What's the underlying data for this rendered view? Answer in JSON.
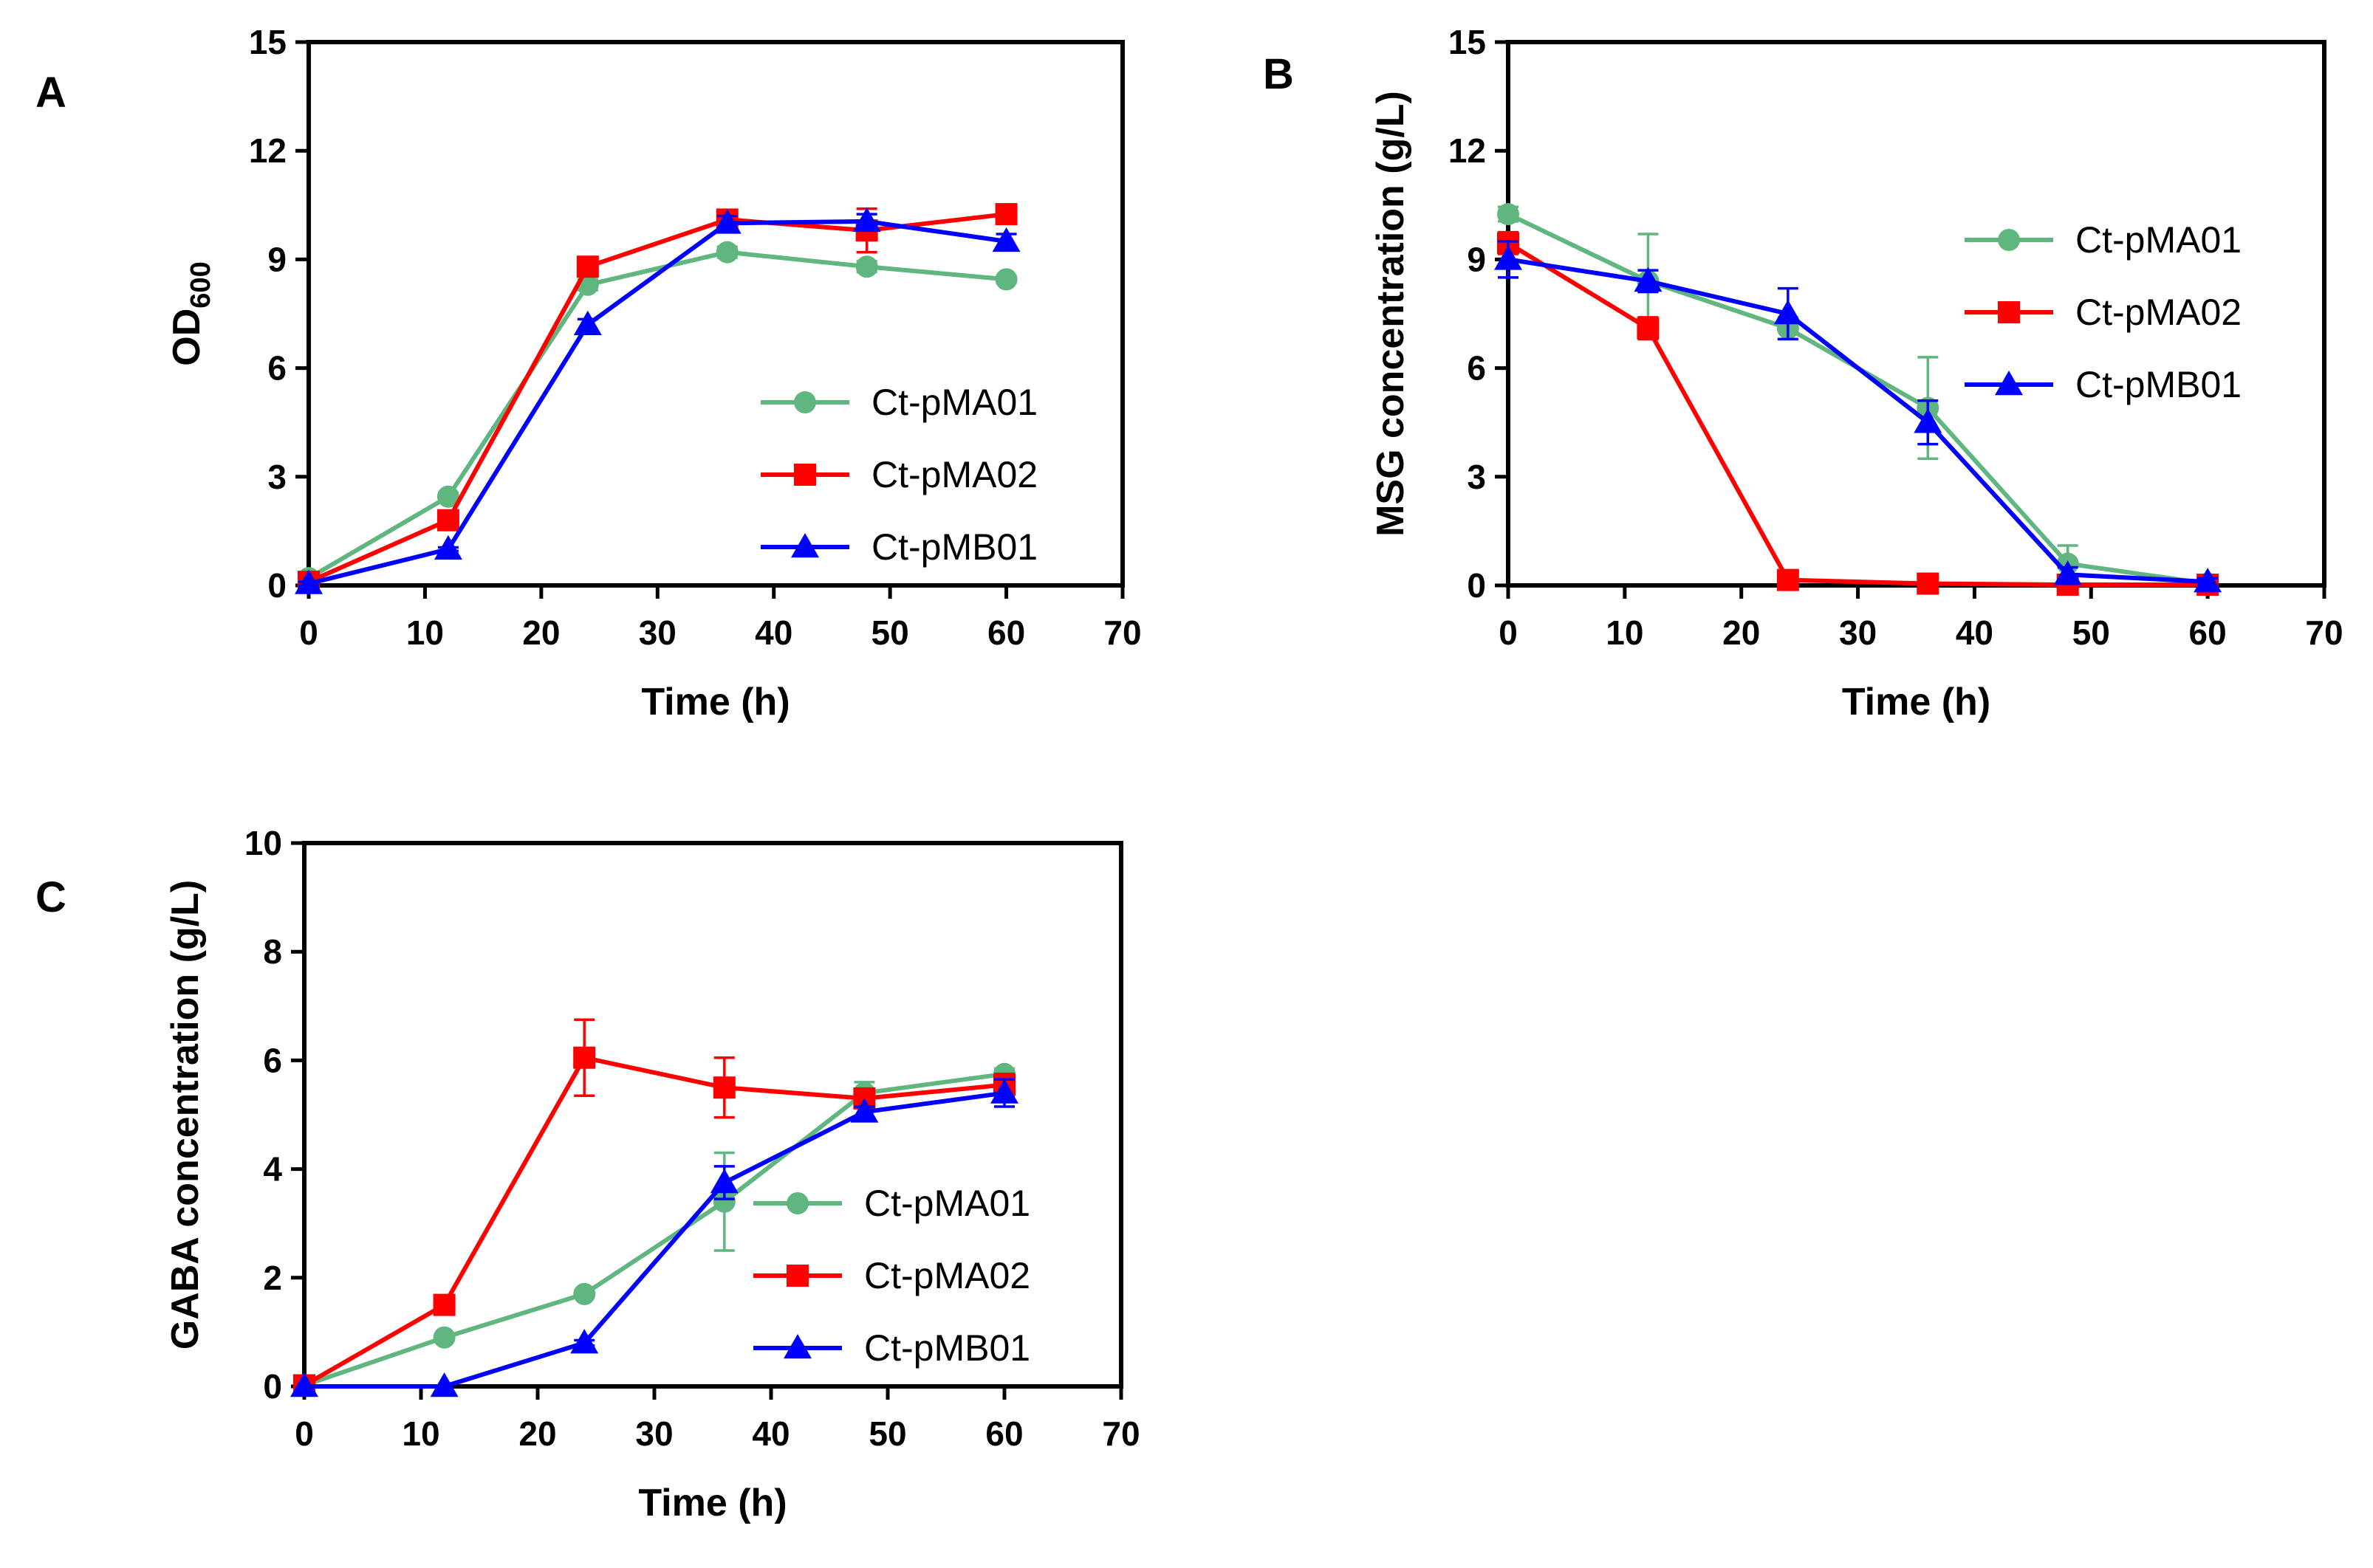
{
  "colors": {
    "Ct-pMA01": "#5fb67f",
    "Ct-pMA02": "#ff0000",
    "Ct-pMB01": "#0000ff"
  },
  "chart_data": [
    {
      "type": "line",
      "panel": "A",
      "xlabel": "Time (h)",
      "ylabel_main": "OD",
      "ylabel_sub": "600",
      "xlim": [
        0,
        70
      ],
      "ylim": [
        0,
        15
      ],
      "xticks": [
        "0",
        "10",
        "20",
        "30",
        "40",
        "50",
        "60",
        "70"
      ],
      "yticks": [
        "0",
        "3",
        "6",
        "9",
        "12",
        "15"
      ],
      "legend_position": "bottom-right",
      "x": [
        0,
        12,
        24,
        36,
        48,
        60
      ],
      "series": [
        {
          "name": "Ct-pMA01",
          "marker": "circle",
          "values": [
            0.2,
            2.45,
            8.3,
            9.2,
            8.8,
            8.45
          ],
          "errors": [
            0.1,
            0.1,
            0.15,
            0.15,
            0.15,
            0.1
          ]
        },
        {
          "name": "Ct-pMA02",
          "marker": "square",
          "values": [
            0.1,
            1.8,
            8.8,
            10.1,
            9.8,
            10.25
          ],
          "errors": [
            0.1,
            0.1,
            0.2,
            0.2,
            0.6,
            0.2
          ]
        },
        {
          "name": "Ct-pMB01",
          "marker": "triangle",
          "values": [
            0.05,
            1.0,
            7.2,
            10.0,
            10.05,
            9.5
          ],
          "errors": [
            0.05,
            0.05,
            0.15,
            0.2,
            0.2,
            0.2
          ]
        }
      ]
    },
    {
      "type": "line",
      "panel": "B",
      "xlabel": "Time (h)",
      "ylabel": "MSG concentration (g/L)",
      "xlim": [
        0,
        70
      ],
      "ylim": [
        0,
        15
      ],
      "xticks": [
        "0",
        "10",
        "20",
        "30",
        "40",
        "50",
        "60",
        "70"
      ],
      "yticks": [
        "0",
        "3",
        "6",
        "9",
        "12",
        "15"
      ],
      "legend_position": "top-right",
      "x": [
        0,
        12,
        24,
        36,
        48,
        60
      ],
      "series": [
        {
          "name": "Ct-pMA01",
          "marker": "circle",
          "values": [
            10.25,
            8.4,
            7.1,
            4.9,
            0.6,
            0.05
          ],
          "errors": [
            0.2,
            1.3,
            0.3,
            1.4,
            0.5,
            0.05
          ]
        },
        {
          "name": "Ct-pMA02",
          "marker": "square",
          "values": [
            9.45,
            7.1,
            0.15,
            0.05,
            0.02,
            0.02
          ],
          "errors": [
            0.3,
            0.3,
            0.1,
            0.05,
            0.02,
            0.02
          ]
        },
        {
          "name": "Ct-pMB01",
          "marker": "triangle",
          "values": [
            9.0,
            8.4,
            7.5,
            4.5,
            0.3,
            0.1
          ],
          "errors": [
            0.5,
            0.3,
            0.7,
            0.6,
            0.2,
            0.1
          ]
        }
      ]
    },
    {
      "type": "line",
      "panel": "C",
      "xlabel": "Time (h)",
      "ylabel": "GABA concentration (g/L)",
      "xlim": [
        0,
        70
      ],
      "ylim": [
        0,
        10
      ],
      "xticks": [
        "0",
        "10",
        "20",
        "30",
        "40",
        "50",
        "60",
        "70"
      ],
      "yticks": [
        "0",
        "2",
        "4",
        "6",
        "8",
        "10"
      ],
      "legend_position": "bottom-right",
      "x": [
        0,
        12,
        24,
        36,
        48,
        60
      ],
      "series": [
        {
          "name": "Ct-pMA01",
          "marker": "circle",
          "values": [
            0.02,
            0.9,
            1.7,
            3.4,
            5.4,
            5.75
          ],
          "errors": [
            0.02,
            0.05,
            0.05,
            0.9,
            0.2,
            0.1
          ]
        },
        {
          "name": "Ct-pMA02",
          "marker": "square",
          "values": [
            0.02,
            1.5,
            6.05,
            5.5,
            5.3,
            5.55
          ],
          "errors": [
            0.02,
            0.05,
            0.7,
            0.55,
            0.1,
            0.2
          ]
        },
        {
          "name": "Ct-pMB01",
          "marker": "triangle",
          "values": [
            0.0,
            0.0,
            0.8,
            3.75,
            5.05,
            5.4
          ],
          "errors": [
            0.0,
            0.0,
            0.05,
            0.3,
            0.1,
            0.25
          ]
        }
      ]
    }
  ]
}
